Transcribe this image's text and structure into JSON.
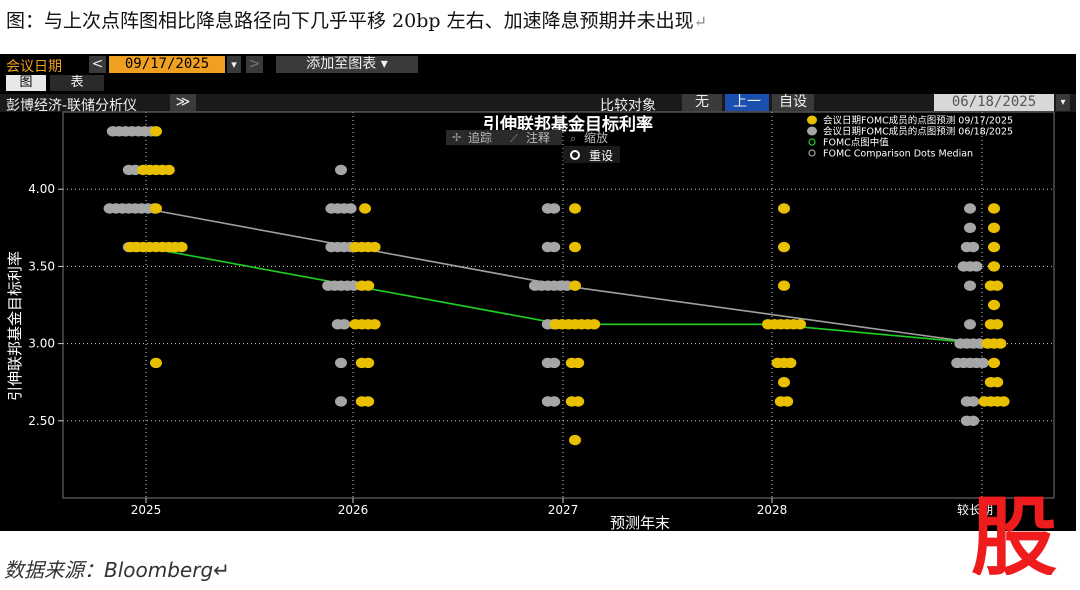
{
  "doc": {
    "title": "图：与上次点阵图相比降息路径向下几乎平移 20bp 左右、加速降息预期并未出现",
    "para_mark": "↵",
    "source": "数据来源：Bloomberg↵",
    "logo_text": "股"
  },
  "toolbar": {
    "meeting_label": "会议日期",
    "meeting_date": "09/17/2025",
    "prev": "<",
    "dropdown": "▾",
    "next": ">",
    "add_to_chart": "添加至图表 ▾",
    "tab_chart": "图",
    "tab_table": "表",
    "context": "彭博经济-联储分析仪",
    "expand": "≫",
    "compare_label": "比较对象",
    "compare_none": "无",
    "compare_prev": "上一",
    "compare_custom": "自设",
    "compare_date": "06/18/2025"
  },
  "plot_controls": {
    "track": "追踪",
    "annotate": "注释",
    "zoom": "缩放",
    "reset": "重设"
  },
  "colors": {
    "current": "#e8c000",
    "previous": "#a6a6a6",
    "median_current": "#20d020",
    "median_previous": "#a0a0a0",
    "accent": "#f0a020"
  },
  "chart_data": {
    "type": "scatter",
    "title": "引伸联邦基金目标利率",
    "xlabel": "预测年末",
    "ylabel": "引伸联邦基金目标利率",
    "x_ticks": [
      "2025",
      "2026",
      "2027",
      "2028",
      "较长期"
    ],
    "y_ticks": [
      "2.50",
      "3.00",
      "3.50",
      "4.00"
    ],
    "ylim": [
      2.0,
      4.5
    ],
    "grid": true,
    "legend_position": "top-right",
    "legend": [
      "会议日期FOMC成员的点图预测 09/17/2025",
      "会议日期FOMC成员的点图预测 06/18/2025",
      "FOMC点图中值",
      "FOMC Comparison Dots Median"
    ],
    "series": [
      {
        "name": "会议日期FOMC成员的点图预测 09/17/2025",
        "dots": {
          "2025": [
            [
              4.375,
              1
            ],
            [
              4.125,
              5
            ],
            [
              3.875,
              1
            ],
            [
              3.625,
              9
            ],
            [
              2.875,
              1
            ]
          ],
          "2026": [
            [
              3.875,
              1
            ],
            [
              3.625,
              4
            ],
            [
              3.375,
              2
            ],
            [
              3.125,
              4
            ],
            [
              2.875,
              2
            ],
            [
              2.625,
              2
            ]
          ],
          "2027": [
            [
              3.875,
              1
            ],
            [
              3.625,
              1
            ],
            [
              3.375,
              1
            ],
            [
              3.125,
              7
            ],
            [
              2.875,
              2
            ],
            [
              2.625,
              2
            ],
            [
              2.375,
              1
            ]
          ],
          "2028": [
            [
              3.875,
              1
            ],
            [
              3.625,
              1
            ],
            [
              3.375,
              1
            ],
            [
              3.125,
              6
            ],
            [
              2.875,
              3
            ],
            [
              2.75,
              1
            ],
            [
              2.625,
              2
            ]
          ],
          "较长期": [
            [
              3.875,
              1
            ],
            [
              3.75,
              1
            ],
            [
              3.625,
              1
            ],
            [
              3.5,
              1
            ],
            [
              3.375,
              2
            ],
            [
              3.25,
              1
            ],
            [
              3.125,
              2
            ],
            [
              3.0,
              3
            ],
            [
              2.875,
              1
            ],
            [
              2.75,
              2
            ],
            [
              2.625,
              4
            ]
          ]
        }
      },
      {
        "name": "会议日期FOMC成员的点图预测 06/18/2025",
        "dots": {
          "2025": [
            [
              4.375,
              7
            ],
            [
              4.125,
              2
            ],
            [
              3.875,
              8
            ],
            [
              3.625,
              2
            ]
          ],
          "2026": [
            [
              4.125,
              1
            ],
            [
              3.875,
              4
            ],
            [
              3.625,
              4
            ],
            [
              3.375,
              5
            ],
            [
              3.125,
              2
            ],
            [
              2.875,
              1
            ],
            [
              2.625,
              1
            ]
          ],
          "2027": [
            [
              3.875,
              2
            ],
            [
              3.625,
              2
            ],
            [
              3.375,
              6
            ],
            [
              3.125,
              2
            ],
            [
              2.875,
              2
            ],
            [
              2.625,
              2
            ]
          ],
          "较长期": [
            [
              3.875,
              1
            ],
            [
              3.75,
              1
            ],
            [
              3.625,
              2
            ],
            [
              3.5,
              3
            ],
            [
              3.375,
              1
            ],
            [
              3.125,
              1
            ],
            [
              3.0,
              4
            ],
            [
              2.875,
              5
            ],
            [
              2.625,
              2
            ],
            [
              2.5,
              2
            ]
          ]
        }
      }
    ],
    "median_current": [
      3.625,
      3.375,
      3.125,
      3.125,
      3.0
    ],
    "median_previous": [
      3.875,
      null,
      3.375,
      null,
      3.0
    ]
  }
}
